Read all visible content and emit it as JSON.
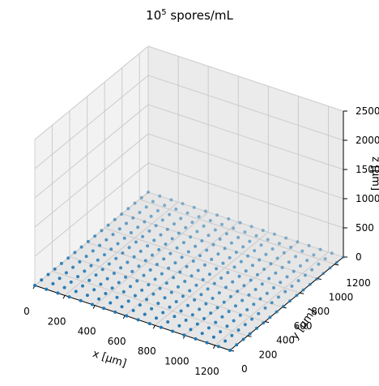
{
  "chart_data": {
    "type": "scatter",
    "title": {
      "base": "10",
      "exponent": "5",
      "unit": "spores/mL"
    },
    "xlabel": "x [μm]",
    "ylabel": "y [μm]",
    "zlabel": "z [μm]",
    "xlim": [
      0,
      1300
    ],
    "ylim": [
      0,
      1300
    ],
    "zlim": [
      0,
      2500
    ],
    "x_ticks": [
      0,
      200,
      400,
      600,
      800,
      1000,
      1200
    ],
    "y_ticks": [
      0,
      200,
      400,
      600,
      800,
      1000,
      1200
    ],
    "z_ticks": [
      0,
      500,
      1000,
      1500,
      2000,
      2500
    ],
    "grid": true,
    "series": [
      {
        "marker_color": "#1f77b4",
        "grid_points": {
          "x_start": 0,
          "x_end": 1300,
          "x_count": 18,
          "y_start": 0,
          "y_end": 1300,
          "y_count": 18,
          "z": 0
        }
      }
    ]
  }
}
